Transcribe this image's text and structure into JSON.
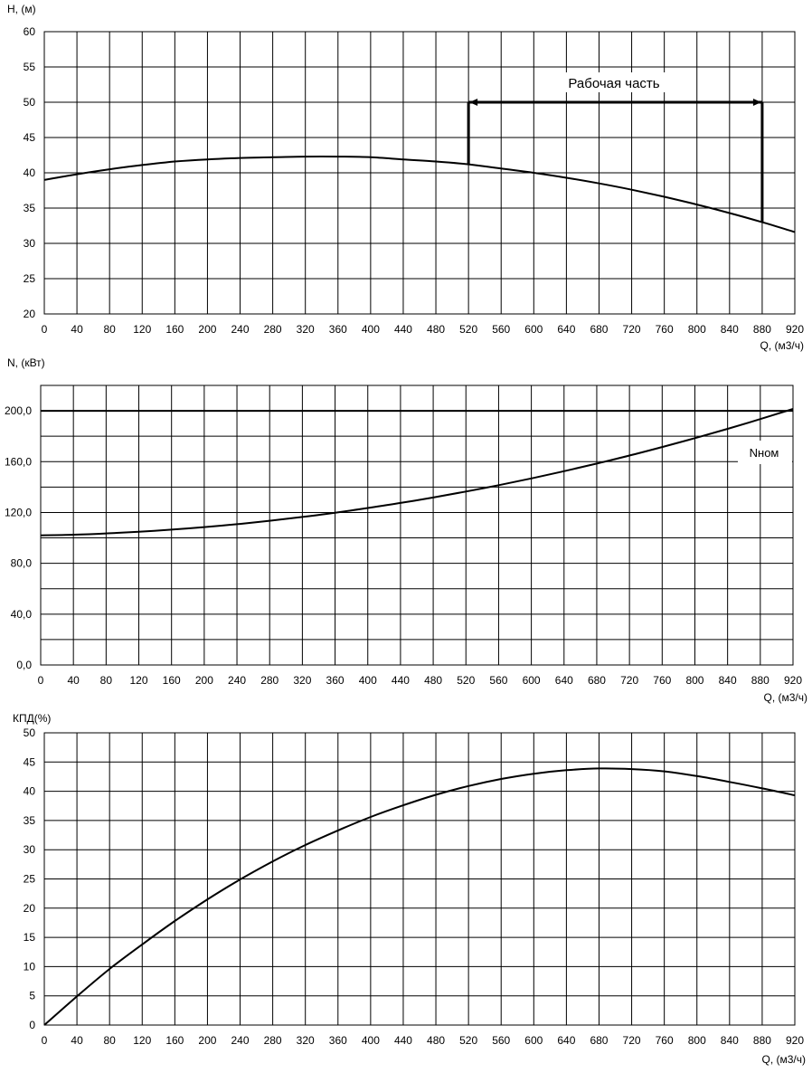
{
  "chart_data": [
    {
      "type": "line",
      "ylabel": "H, (м)",
      "xlabel": "Q, (м3/ч)",
      "xlim": [
        0,
        920
      ],
      "ylim": [
        20,
        60
      ],
      "x_ticks": [
        "0",
        "40",
        "80",
        "120",
        "160",
        "200",
        "240",
        "280",
        "320",
        "360",
        "400",
        "440",
        "480",
        "520",
        "560",
        "600",
        "640",
        "680",
        "720",
        "760",
        "800",
        "840",
        "880",
        "920"
      ],
      "y_ticks": [
        "20",
        "25",
        "30",
        "35",
        "40",
        "45",
        "50",
        "55",
        "60"
      ],
      "grid": true,
      "series": [
        {
          "x": [
            0,
            40,
            80,
            120,
            160,
            200,
            240,
            280,
            320,
            360,
            400,
            440,
            480,
            520,
            560,
            600,
            640,
            680,
            720,
            760,
            800,
            840,
            880,
            920
          ],
          "y": [
            39.0,
            39.8,
            40.5,
            41.1,
            41.6,
            41.9,
            42.1,
            42.2,
            42.3,
            42.3,
            42.2,
            41.9,
            41.6,
            41.2,
            40.6,
            40.0,
            39.3,
            38.5,
            37.6,
            36.6,
            35.5,
            34.3,
            33.0,
            31.6
          ]
        }
      ],
      "annotation": {
        "text": "Рабочая часть",
        "q_from": 520,
        "q_to": 880,
        "h_level": 50,
        "h_at_from": 41.2,
        "h_at_to": 33.0
      }
    },
    {
      "type": "line",
      "ylabel": "N, (кВт)",
      "xlabel": "Q, (м3/ч)",
      "xlim": [
        0,
        920
      ],
      "ylim": [
        0,
        220
      ],
      "x_ticks": [
        "0",
        "40",
        "80",
        "120",
        "160",
        "200",
        "240",
        "280",
        "320",
        "360",
        "400",
        "440",
        "480",
        "520",
        "560",
        "600",
        "640",
        "680",
        "720",
        "760",
        "800",
        "840",
        "880",
        "920"
      ],
      "y_ticks": [
        "0,0",
        "40,0",
        "80,0",
        "120,0",
        "160,0",
        "200,0"
      ],
      "y_tick_values": [
        0,
        40,
        80,
        120,
        160,
        200
      ],
      "grid": true,
      "series": [
        {
          "x": [
            0,
            40,
            80,
            120,
            160,
            200,
            240,
            280,
            320,
            360,
            400,
            440,
            480,
            520,
            560,
            600,
            640,
            680,
            720,
            760,
            800,
            840,
            880,
            920
          ],
          "y": [
            102,
            102.5,
            103.5,
            104.8,
            106.5,
            108.5,
            110.8,
            113.5,
            116.5,
            119.8,
            123.5,
            127.5,
            131.8,
            136.5,
            141.5,
            146.8,
            152.5,
            158.5,
            164.8,
            171.5,
            178.5,
            185.8,
            193.5,
            201.5
          ]
        },
        {
          "name": "Nном",
          "x": [
            0,
            920
          ],
          "y": [
            200,
            200
          ]
        }
      ]
    },
    {
      "type": "line",
      "ylabel": "КПД(%)",
      "xlabel": "Q, (м3/ч)",
      "xlim": [
        0,
        920
      ],
      "ylim": [
        0,
        50
      ],
      "x_ticks": [
        "0",
        "40",
        "80",
        "120",
        "160",
        "200",
        "240",
        "280",
        "320",
        "360",
        "400",
        "440",
        "480",
        "520",
        "560",
        "600",
        "640",
        "680",
        "720",
        "760",
        "800",
        "840",
        "880",
        "920"
      ],
      "y_ticks": [
        "0",
        "5",
        "10",
        "15",
        "20",
        "25",
        "30",
        "35",
        "40",
        "45",
        "50"
      ],
      "grid": true,
      "series": [
        {
          "x": [
            0,
            40,
            80,
            120,
            160,
            200,
            240,
            280,
            320,
            360,
            400,
            440,
            480,
            520,
            560,
            600,
            640,
            680,
            720,
            760,
            800,
            840,
            880,
            920
          ],
          "y": [
            0,
            4.9,
            9.6,
            13.8,
            17.8,
            21.5,
            24.9,
            28.0,
            30.8,
            33.3,
            35.6,
            37.6,
            39.4,
            40.9,
            42.1,
            43.0,
            43.6,
            43.9,
            43.8,
            43.4,
            42.6,
            41.6,
            40.5,
            39.3
          ]
        }
      ]
    }
  ]
}
